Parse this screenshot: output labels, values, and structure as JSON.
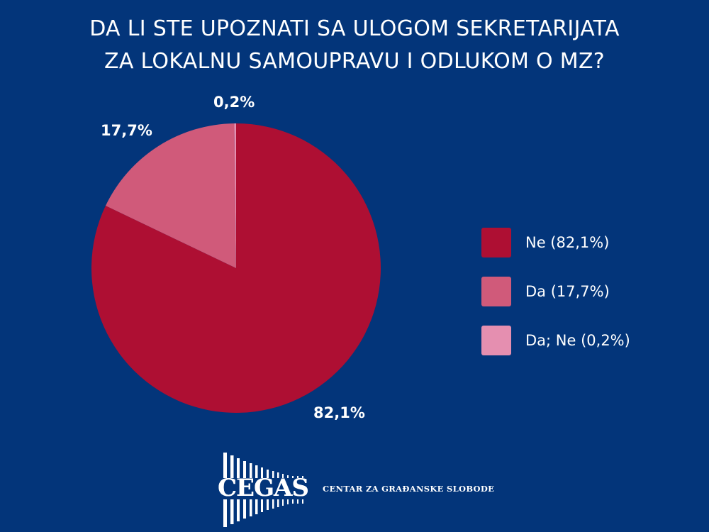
{
  "title": {
    "line1": "DA LI STE UPOZNATI SA ULOGOM SEKRETARIJATA",
    "line2": "ZA LOKALNU SAMOUPRAVU I ODLUKOM O MZ?"
  },
  "colors": {
    "background": "#03357a",
    "ne": "#ae0f33",
    "da": "#d05a7a",
    "da_ne": "#e58fb0"
  },
  "pie_labels": {
    "ne": "82,1%",
    "da": "17,7%",
    "da_ne": "0,2%"
  },
  "legend": {
    "items": [
      {
        "label": "Ne (82,1%)",
        "color": "#ae0f33"
      },
      {
        "label": "Da (17,7%)",
        "color": "#d05a7a"
      },
      {
        "label": "Da; Ne (0,2%)",
        "color": "#e58fb0"
      }
    ]
  },
  "footer": {
    "logo_text": "CEGAS",
    "org_name": "CENTAR ZA GRAĐANSKE SLOBODE"
  },
  "chart_data": {
    "type": "pie",
    "title": "DA LI STE UPOZNATI SA ULOGOM SEKRETARIJATA ZA LOKALNU SAMOUPRAVU I ODLUKOM O MZ?",
    "categories": [
      "Ne",
      "Da",
      "Da; Ne"
    ],
    "values": [
      82.1,
      17.7,
      0.2
    ],
    "unit": "%",
    "colors": [
      "#ae0f33",
      "#d05a7a",
      "#e58fb0"
    ],
    "data_labels": [
      "82,1%",
      "17,7%",
      "0,2%"
    ],
    "legend_entries": [
      "Ne (82,1%)",
      "Da (17,7%)",
      "Da; Ne (0,2%)"
    ],
    "legend_position": "right",
    "start_angle": "12 o'clock, clockwise"
  }
}
